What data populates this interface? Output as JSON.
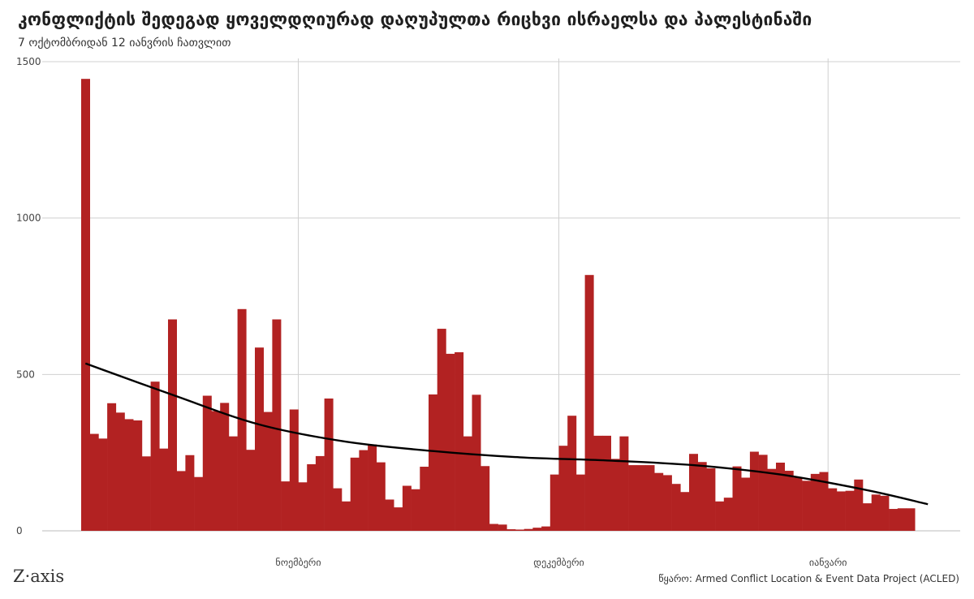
{
  "title": "კონფლიქტის შედეგად ყოველდღიურად დაღუპულთა რიცხვი ისრაელსა და პალესტინაში",
  "subtitle": "7 ოქტომბრიდან 12 იანვრის ჩათვლით",
  "source": "წყარო: Armed Conflict Location & Event Data Project (ACLED)",
  "logo": "Z·axis",
  "colors": {
    "bar": "#b22222",
    "trend": "#000000",
    "grid": "#d0d0d0"
  },
  "chart_data": {
    "type": "bar",
    "x_start": "2023-10-07",
    "x_end": "2024-01-12",
    "ylim": [
      0,
      1500
    ],
    "yticks": [
      0,
      500,
      1000,
      1500
    ],
    "ytick_labels": [
      "0",
      "500",
      "1000",
      "1500"
    ],
    "xticks": [
      {
        "date": "2023-11-01",
        "label": "ნოემბერი"
      },
      {
        "date": "2023-12-01",
        "label": "დეკემბერი"
      },
      {
        "date": "2024-01-01",
        "label": "იანვარი"
      }
    ],
    "values": [
      1445,
      310,
      295,
      408,
      378,
      357,
      353,
      238,
      477,
      263,
      676,
      191,
      242,
      172,
      432,
      383,
      409,
      302,
      709,
      259,
      586,
      380,
      676,
      158,
      388,
      155,
      213,
      239,
      423,
      136,
      94,
      234,
      258,
      276,
      219,
      100,
      75,
      144,
      133,
      205,
      436,
      646,
      566,
      571,
      302,
      435,
      207,
      22,
      20,
      5,
      4,
      6,
      10,
      14,
      180,
      272,
      368,
      180,
      818,
      304,
      304,
      230,
      302,
      210,
      210,
      210,
      185,
      178,
      150,
      124,
      246,
      220,
      200,
      94,
      106,
      206,
      170,
      253,
      243,
      198,
      218,
      192,
      170,
      160,
      182,
      188,
      136,
      126,
      128,
      164,
      88,
      116,
      112,
      70,
      72,
      72
    ],
    "trend": [
      {
        "date": "2023-10-07",
        "value": 535
      },
      {
        "date": "2023-10-17",
        "value": 435
      },
      {
        "date": "2023-10-27",
        "value": 340
      },
      {
        "date": "2023-11-06",
        "value": 285
      },
      {
        "date": "2023-11-16",
        "value": 255
      },
      {
        "date": "2023-11-26",
        "value": 235
      },
      {
        "date": "2023-12-06",
        "value": 225
      },
      {
        "date": "2023-12-16",
        "value": 210
      },
      {
        "date": "2023-12-26",
        "value": 180
      },
      {
        "date": "2024-01-05",
        "value": 130
      },
      {
        "date": "2024-01-12",
        "value": 85
      }
    ]
  }
}
